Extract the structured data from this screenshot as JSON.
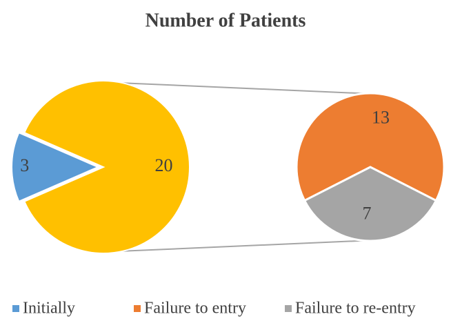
{
  "chart_data": {
    "type": "pie-of-pie",
    "title": "Number of Patients",
    "categories": [
      "Initially",
      "Failure to entry",
      "Failure to re-entry"
    ],
    "values": [
      3,
      13,
      7
    ],
    "colors": [
      "#5b9bd5",
      "#ed7d31",
      "#a5a5a5"
    ],
    "other_value": 20,
    "other_color": "#ffc000",
    "legend": "bottom"
  }
}
